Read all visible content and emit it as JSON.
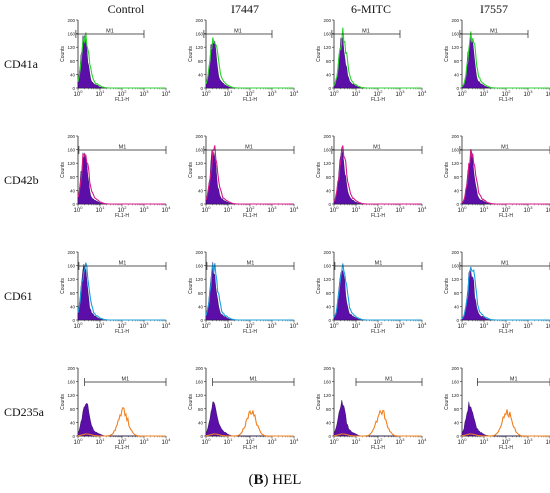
{
  "figure": {
    "caption_label": "B",
    "caption_text": "HEL",
    "caption_close": ")"
  },
  "chart_data": {
    "type": "histogram-grid",
    "columns": [
      "Control",
      "I7447",
      "6-MITC",
      "I7557"
    ],
    "rows": [
      {
        "label": "CD41a",
        "fill": "#5b0fa8",
        "outline": "#2fd32f",
        "profile": "narrow",
        "m1": [
          [
            0.8,
            1000
          ],
          [
            0.8,
            1000
          ],
          [
            0.8,
            1000
          ],
          [
            0.8,
            1000
          ]
        ]
      },
      {
        "label": "CD42b",
        "fill": "#5b0fa8",
        "outline": "#d7198a",
        "profile": "narrow",
        "m1": [
          [
            1.1,
            10000
          ],
          [
            0.8,
            10000
          ],
          [
            0.8,
            10000
          ],
          [
            0.8,
            10000
          ]
        ]
      },
      {
        "label": "CD61",
        "fill": "#5b0fa8",
        "outline": "#1c9fe0",
        "profile": "narrow",
        "m1": [
          [
            1.1,
            10000
          ],
          [
            1.1,
            10000
          ],
          [
            1.1,
            10000
          ],
          [
            0.8,
            10000
          ]
        ]
      },
      {
        "label": "CD235a",
        "fill": "#5b0fa8",
        "outline": "#f07f1f",
        "profile": "bimodal",
        "m1": [
          [
            2.0,
            10000
          ],
          [
            2.0,
            10000
          ],
          [
            10,
            10000
          ],
          [
            5.0,
            10000
          ]
        ]
      }
    ],
    "y_axis": {
      "label": "Counts",
      "ticks": [
        0,
        40,
        80,
        120,
        160,
        200
      ],
      "lim": [
        0,
        200
      ]
    },
    "x_axis": {
      "label": "FL1-H",
      "scale": "log",
      "lim": [
        1,
        10000
      ],
      "tick_labels": [
        [
          "10",
          "0"
        ],
        [
          "10",
          "1"
        ],
        [
          "10",
          "2"
        ],
        [
          "10",
          "3"
        ],
        [
          "10",
          "4"
        ]
      ]
    },
    "gate_label": "M1",
    "grid": false,
    "legend": "none"
  }
}
